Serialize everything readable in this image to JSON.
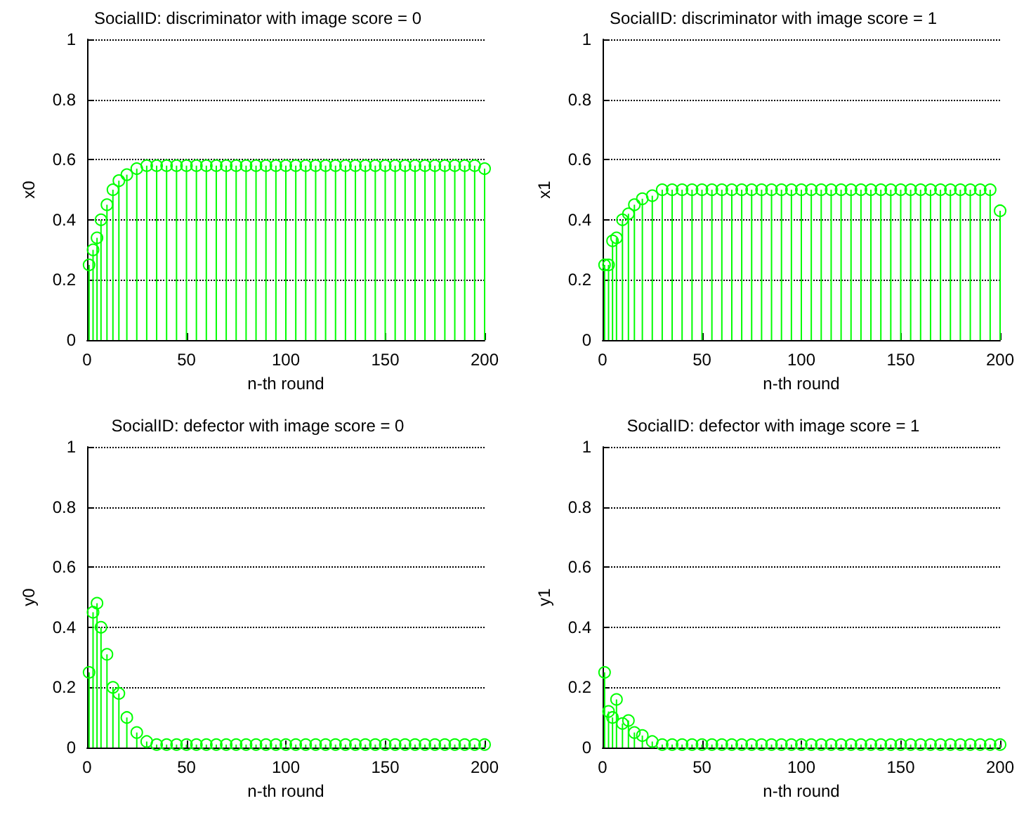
{
  "chart_data": [
    {
      "type": "lollipop",
      "title": "SocialID: discriminator with image score = 0",
      "xlabel": "n-th round",
      "ylabel": "x0",
      "color": "#00ff00",
      "marker": "circle",
      "grid": "y",
      "line_style": "dotted",
      "x": [
        1,
        3,
        5,
        7,
        10,
        13,
        16,
        20,
        25,
        30,
        35,
        40,
        45,
        50,
        55,
        60,
        65,
        70,
        75,
        80,
        85,
        90,
        95,
        100,
        105,
        110,
        115,
        120,
        125,
        130,
        135,
        140,
        145,
        150,
        155,
        160,
        165,
        170,
        175,
        180,
        185,
        190,
        195,
        200
      ],
      "values": [
        0.25,
        0.3,
        0.34,
        0.4,
        0.45,
        0.5,
        0.53,
        0.55,
        0.57,
        0.58,
        0.58,
        0.58,
        0.58,
        0.58,
        0.58,
        0.58,
        0.58,
        0.58,
        0.58,
        0.58,
        0.58,
        0.58,
        0.58,
        0.58,
        0.58,
        0.58,
        0.58,
        0.58,
        0.58,
        0.58,
        0.58,
        0.58,
        0.58,
        0.58,
        0.58,
        0.58,
        0.58,
        0.58,
        0.58,
        0.58,
        0.58,
        0.58,
        0.58,
        0.57
      ],
      "xlim": [
        0,
        200
      ],
      "xticks": [
        0,
        50,
        100,
        150,
        200
      ],
      "ylim": [
        0,
        1
      ],
      "yticks": [
        0,
        0.2,
        0.4,
        0.6,
        0.8,
        1
      ]
    },
    {
      "type": "lollipop",
      "title": "SocialID: discriminator with image score = 1",
      "xlabel": "n-th round",
      "ylabel": "x1",
      "color": "#00ff00",
      "marker": "circle",
      "grid": "y",
      "line_style": "dotted",
      "x": [
        1,
        3,
        5,
        7,
        10,
        13,
        16,
        20,
        25,
        30,
        35,
        40,
        45,
        50,
        55,
        60,
        65,
        70,
        75,
        80,
        85,
        90,
        95,
        100,
        105,
        110,
        115,
        120,
        125,
        130,
        135,
        140,
        145,
        150,
        155,
        160,
        165,
        170,
        175,
        180,
        185,
        190,
        195,
        200
      ],
      "values": [
        0.25,
        0.25,
        0.33,
        0.34,
        0.4,
        0.42,
        0.45,
        0.47,
        0.48,
        0.5,
        0.5,
        0.5,
        0.5,
        0.5,
        0.5,
        0.5,
        0.5,
        0.5,
        0.5,
        0.5,
        0.5,
        0.5,
        0.5,
        0.5,
        0.5,
        0.5,
        0.5,
        0.5,
        0.5,
        0.5,
        0.5,
        0.5,
        0.5,
        0.5,
        0.5,
        0.5,
        0.5,
        0.5,
        0.5,
        0.5,
        0.5,
        0.5,
        0.5,
        0.43
      ],
      "xlim": [
        0,
        200
      ],
      "xticks": [
        0,
        50,
        100,
        150,
        200
      ],
      "ylim": [
        0,
        1
      ],
      "yticks": [
        0,
        0.2,
        0.4,
        0.6,
        0.8,
        1
      ]
    },
    {
      "type": "lollipop",
      "title": "SocialID: defector with image score = 0",
      "xlabel": "n-th round",
      "ylabel": "y0",
      "color": "#00ff00",
      "marker": "circle",
      "grid": "y",
      "line_style": "dotted",
      "x": [
        1,
        3,
        5,
        7,
        10,
        13,
        16,
        20,
        25,
        30,
        35,
        40,
        45,
        50,
        55,
        60,
        65,
        70,
        75,
        80,
        85,
        90,
        95,
        100,
        105,
        110,
        115,
        120,
        125,
        130,
        135,
        140,
        145,
        150,
        155,
        160,
        165,
        170,
        175,
        180,
        185,
        190,
        195,
        200
      ],
      "values": [
        0.25,
        0.45,
        0.48,
        0.4,
        0.31,
        0.2,
        0.18,
        0.1,
        0.05,
        0.02,
        0.01,
        0.01,
        0.01,
        0.01,
        0.01,
        0.01,
        0.01,
        0.01,
        0.01,
        0.01,
        0.01,
        0.01,
        0.01,
        0.01,
        0.01,
        0.01,
        0.01,
        0.01,
        0.01,
        0.01,
        0.01,
        0.01,
        0.01,
        0.01,
        0.01,
        0.01,
        0.01,
        0.01,
        0.01,
        0.01,
        0.01,
        0.01,
        0.01,
        0.01
      ],
      "xlim": [
        0,
        200
      ],
      "xticks": [
        0,
        50,
        100,
        150,
        200
      ],
      "ylim": [
        0,
        1
      ],
      "yticks": [
        0,
        0.2,
        0.4,
        0.6,
        0.8,
        1
      ]
    },
    {
      "type": "lollipop",
      "title": "SocialID: defector with image score = 1",
      "xlabel": "n-th round",
      "ylabel": "y1",
      "color": "#00ff00",
      "marker": "circle",
      "grid": "y",
      "line_style": "dotted",
      "x": [
        1,
        3,
        5,
        7,
        10,
        13,
        16,
        20,
        25,
        30,
        35,
        40,
        45,
        50,
        55,
        60,
        65,
        70,
        75,
        80,
        85,
        90,
        95,
        100,
        105,
        110,
        115,
        120,
        125,
        130,
        135,
        140,
        145,
        150,
        155,
        160,
        165,
        170,
        175,
        180,
        185,
        190,
        195,
        200
      ],
      "values": [
        0.25,
        0.12,
        0.1,
        0.16,
        0.08,
        0.09,
        0.05,
        0.04,
        0.02,
        0.01,
        0.01,
        0.01,
        0.01,
        0.01,
        0.01,
        0.01,
        0.01,
        0.01,
        0.01,
        0.01,
        0.01,
        0.01,
        0.01,
        0.01,
        0.01,
        0.01,
        0.01,
        0.01,
        0.01,
        0.01,
        0.01,
        0.01,
        0.01,
        0.01,
        0.01,
        0.01,
        0.01,
        0.01,
        0.01,
        0.01,
        0.01,
        0.01,
        0.01,
        0.01
      ],
      "xlim": [
        0,
        200
      ],
      "xticks": [
        0,
        50,
        100,
        150,
        200
      ],
      "ylim": [
        0,
        1
      ],
      "yticks": [
        0,
        0.2,
        0.4,
        0.6,
        0.8,
        1
      ]
    }
  ]
}
